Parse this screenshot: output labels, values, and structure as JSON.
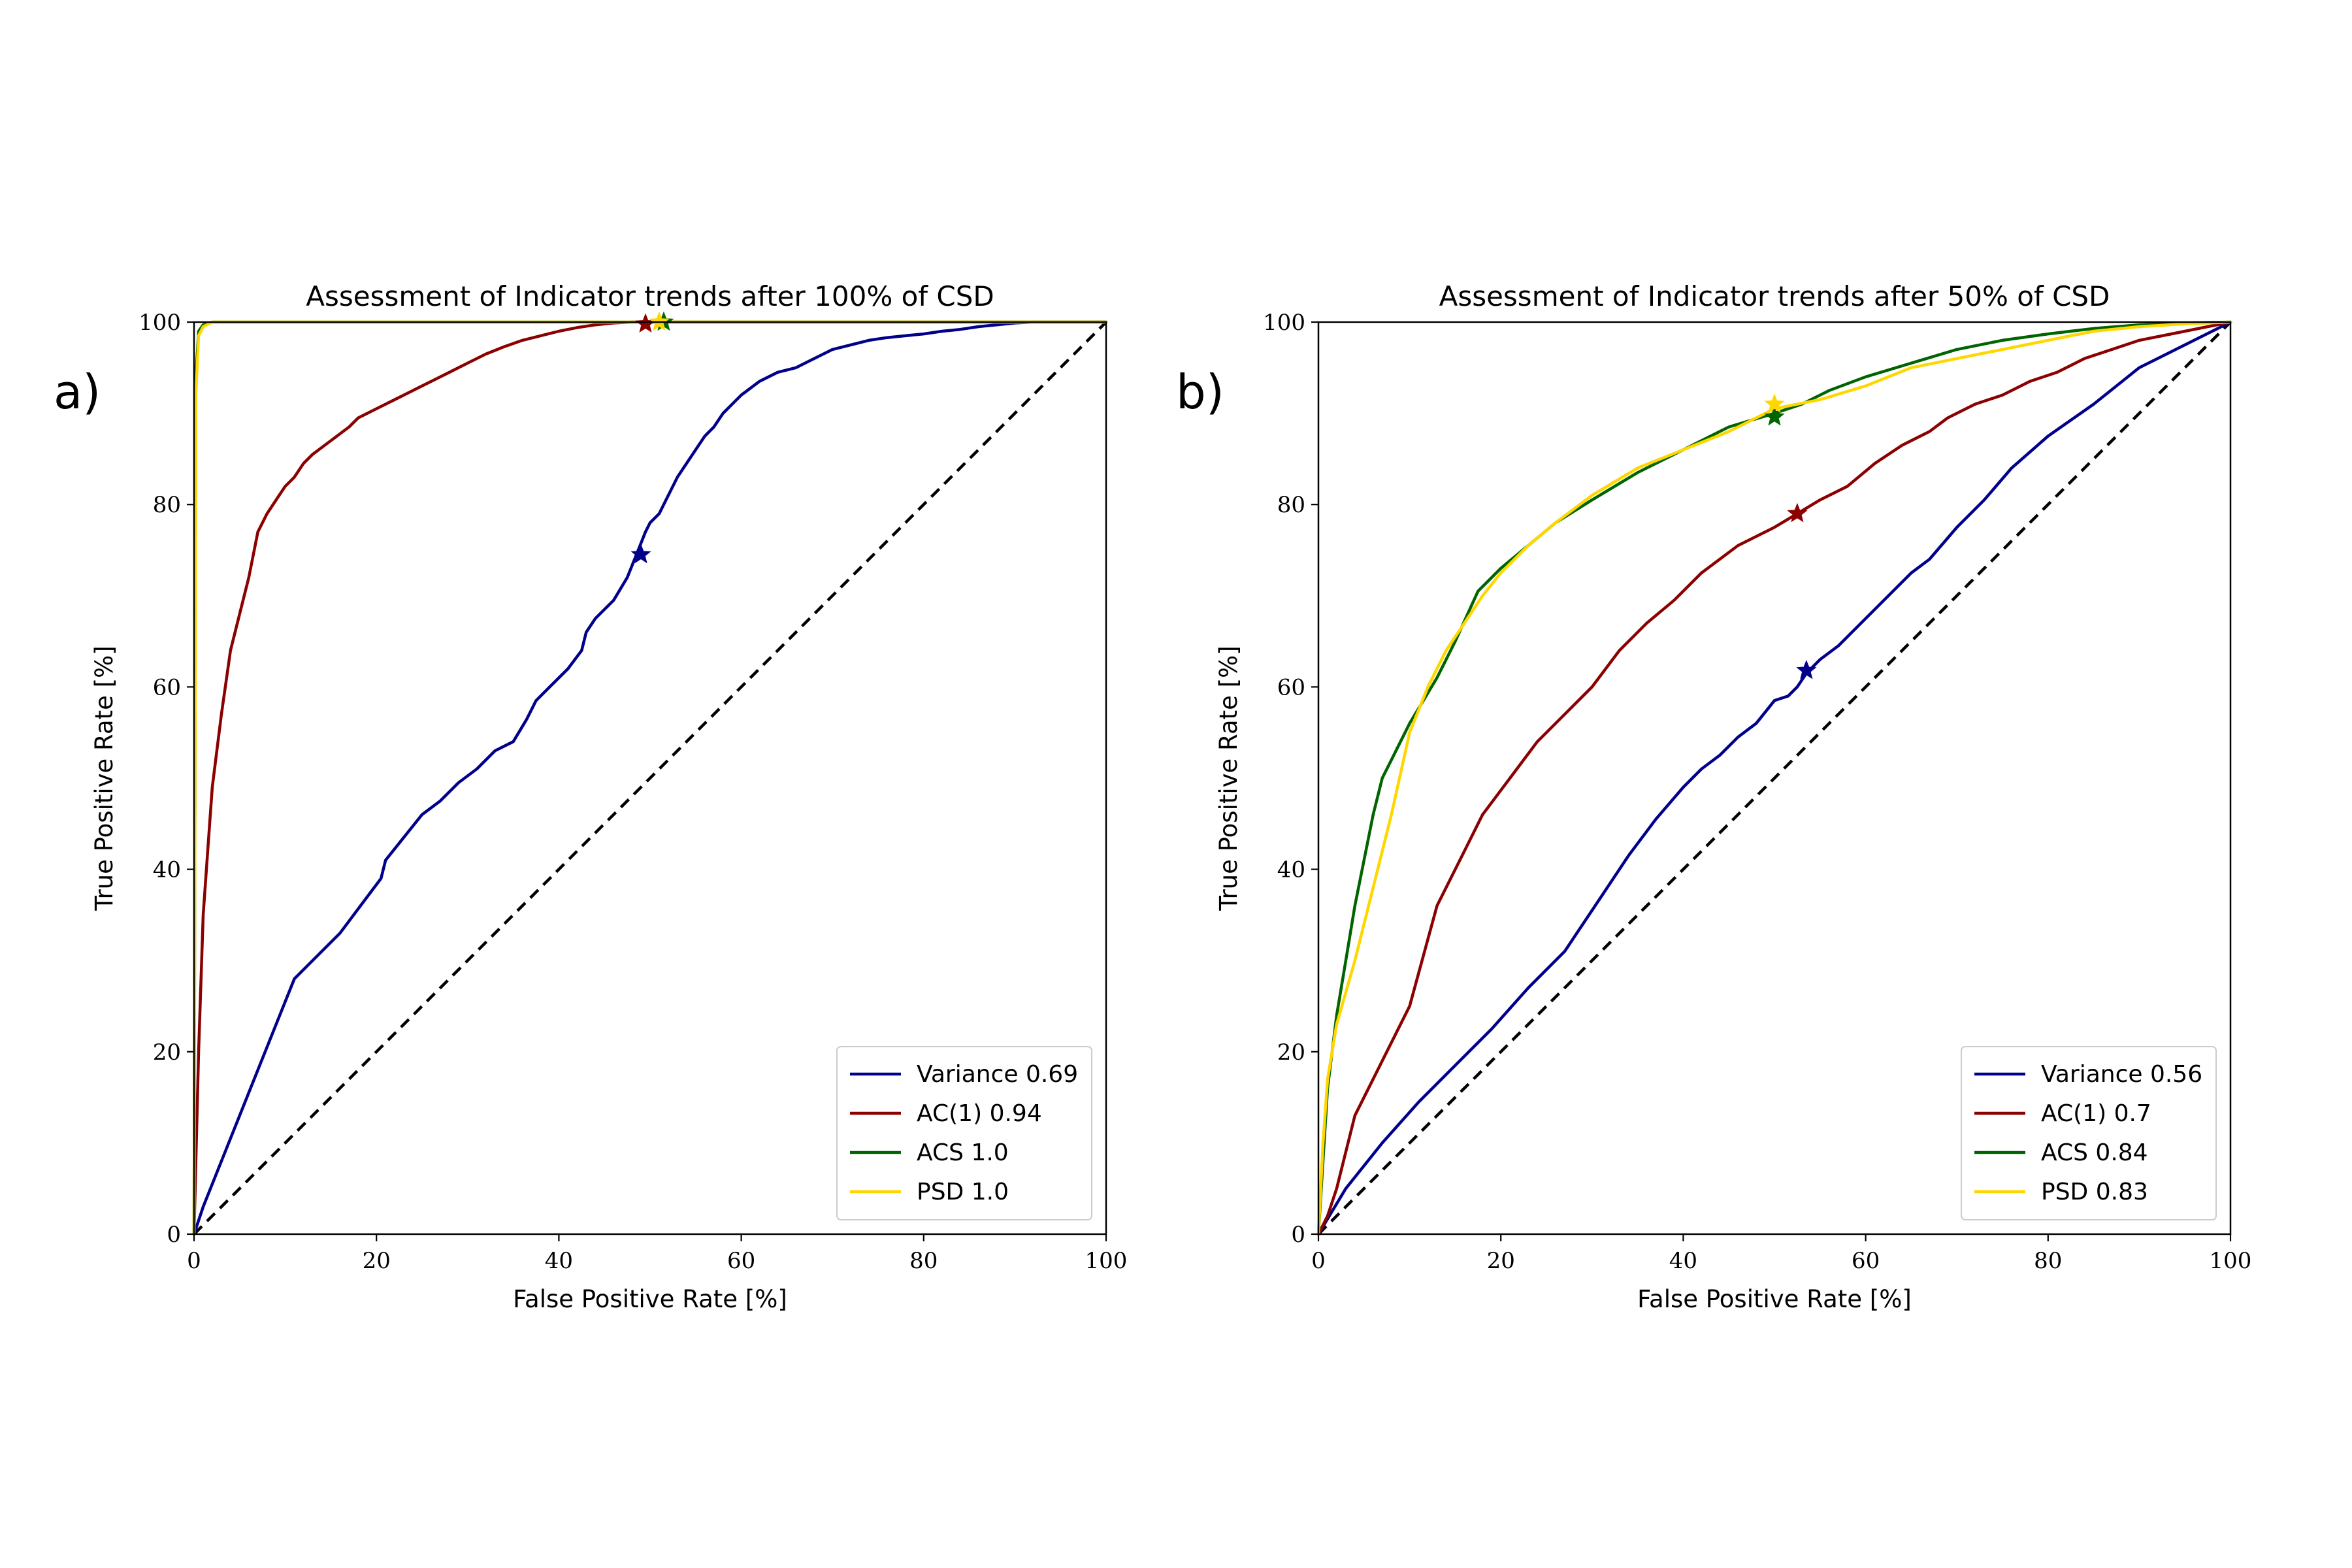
{
  "chart_data": [
    {
      "type": "line",
      "panel_label": "a)",
      "title": "Assessment of Indicator trends after 100% of CSD",
      "xlabel": "False Positive Rate [%]",
      "ylabel": "True Positive Rate [%]",
      "xlim": [
        0,
        100
      ],
      "ylim": [
        0,
        100
      ],
      "xticks": [
        "0",
        "20",
        "40",
        "60",
        "80",
        "100"
      ],
      "yticks": [
        "0",
        "20",
        "40",
        "60",
        "80",
        "100"
      ],
      "legend_position": "lower right",
      "diagonal": "dashed black line from (0,0) to (100,100)",
      "series": [
        {
          "name": "Variance 0.69",
          "color": "#00008b",
          "x": [
            0,
            1,
            3,
            5,
            7,
            9,
            11,
            13,
            16,
            19,
            20.5,
            21,
            23,
            25,
            27,
            29,
            31,
            33,
            35,
            36.5,
            37.5,
            39,
            41,
            42.5,
            43,
            44,
            46,
            47.5,
            48.5,
            49.5,
            50,
            51,
            52,
            53,
            54,
            55,
            56,
            57,
            58,
            60,
            62,
            64,
            66,
            67,
            69,
            70,
            72,
            74,
            76,
            78,
            80,
            82,
            84,
            86,
            88,
            90,
            92,
            95,
            97,
            100
          ],
          "y": [
            0,
            3,
            8,
            13,
            18,
            23,
            28,
            30,
            33,
            37,
            39,
            41,
            43.5,
            46,
            47.5,
            49.5,
            51,
            53,
            54,
            56.5,
            58.5,
            60,
            62,
            64,
            66,
            67.5,
            69.5,
            72,
            74.5,
            77,
            78,
            79,
            81,
            83,
            84.5,
            86,
            87.5,
            88.5,
            90,
            92,
            93.5,
            94.5,
            95,
            95.5,
            96.5,
            97,
            97.5,
            98,
            98.3,
            98.5,
            98.7,
            99,
            99.2,
            99.5,
            99.7,
            99.9,
            100,
            100,
            100,
            100
          ],
          "marker": {
            "x": 49,
            "y": 74.5
          }
        },
        {
          "name": "AC(1) 0.94",
          "color": "#8b0000",
          "x": [
            0,
            0.5,
            1,
            1.5,
            2,
            3,
            4,
            5,
            6,
            7,
            8,
            9,
            10,
            11,
            12,
            13,
            15,
            17,
            18,
            20,
            22,
            24,
            26,
            28,
            30,
            32,
            34,
            36,
            38,
            40,
            42,
            44,
            46,
            48,
            50,
            55,
            60,
            80,
            100
          ],
          "y": [
            0,
            20,
            35,
            42,
            49,
            57,
            64,
            68,
            72,
            77,
            79,
            80.5,
            82,
            83,
            84.5,
            85.5,
            87,
            88.5,
            89.5,
            90.5,
            91.5,
            92.5,
            93.5,
            94.5,
            95.5,
            96.5,
            97.3,
            98,
            98.5,
            99,
            99.4,
            99.7,
            99.9,
            100,
            100,
            100,
            100,
            100,
            100
          ],
          "marker": {
            "x": 49.5,
            "y": 99.8
          }
        },
        {
          "name": "ACS 1.0",
          "color": "#006400",
          "x": [
            0,
            0.2,
            0.5,
            1,
            2,
            5,
            10,
            30,
            60,
            100
          ],
          "y": [
            0,
            94,
            99,
            99.7,
            100,
            100,
            100,
            100,
            100,
            100
          ],
          "marker": {
            "x": 51.5,
            "y": 100
          }
        },
        {
          "name": "PSD 1.0",
          "color": "#ffd700",
          "x": [
            0,
            0.2,
            0.5,
            1,
            2,
            5,
            10,
            30,
            60,
            100
          ],
          "y": [
            0,
            92,
            98.5,
            99.5,
            100,
            100,
            100,
            100,
            100,
            100
          ],
          "marker": {
            "x": 51,
            "y": 100
          }
        }
      ]
    },
    {
      "type": "line",
      "panel_label": "b)",
      "title": "Assessment of Indicator trends after 50% of CSD",
      "xlabel": "False Positive Rate [%]",
      "ylabel": "True Positive Rate [%]",
      "xlim": [
        0,
        100
      ],
      "ylim": [
        0,
        100
      ],
      "xticks": [
        "0",
        "20",
        "40",
        "60",
        "80",
        "100"
      ],
      "yticks": [
        "0",
        "20",
        "40",
        "60",
        "80",
        "100"
      ],
      "legend_position": "lower right",
      "diagonal": "dashed black line from (0,0) to (100,100)",
      "series": [
        {
          "name": "Variance 0.56",
          "color": "#00008b",
          "x": [
            0,
            3,
            7,
            11,
            15,
            19,
            23,
            27,
            31,
            34,
            37,
            40,
            42,
            44,
            46,
            48,
            50,
            51.5,
            52.5,
            53.5,
            55,
            57,
            59,
            61,
            63,
            65,
            67,
            70,
            73,
            76,
            80,
            85,
            90,
            95,
            100
          ],
          "y": [
            0,
            5,
            10,
            14.5,
            18.5,
            22.5,
            27,
            31,
            37,
            41.5,
            45.5,
            49,
            51,
            52.5,
            54.5,
            56,
            58.5,
            59,
            60,
            61.5,
            63,
            64.5,
            66.5,
            68.5,
            70.5,
            72.5,
            74,
            77.5,
            80.5,
            84,
            87.5,
            91,
            95,
            97.5,
            100
          ],
          "marker": {
            "x": 53.5,
            "y": 61.8
          }
        },
        {
          "name": "AC(1) 0.7",
          "color": "#8b0000",
          "x": [
            0,
            1,
            2,
            4,
            7,
            10,
            13,
            16,
            18,
            21,
            24,
            27,
            30,
            33,
            36,
            39,
            42,
            46,
            50,
            52.5,
            55,
            58,
            61,
            64,
            67,
            69,
            72,
            75,
            78,
            81,
            84,
            87,
            90,
            95,
            100
          ],
          "y": [
            0,
            2,
            5,
            13,
            19,
            25,
            36,
            42,
            46,
            50,
            54,
            57,
            60,
            64,
            67,
            69.5,
            72.5,
            75.5,
            77.5,
            79,
            80.5,
            82,
            84.5,
            86.5,
            88,
            89.5,
            91,
            92,
            93.5,
            94.5,
            96,
            97,
            98,
            99,
            100
          ],
          "marker": {
            "x": 52.5,
            "y": 79
          }
        },
        {
          "name": "ACS 0.84",
          "color": "#006400",
          "x": [
            0,
            0.5,
            1,
            2,
            3,
            4,
            5,
            6,
            7,
            8,
            10,
            13,
            15,
            17.5,
            20,
            23,
            26,
            30,
            35,
            40,
            45,
            50,
            53,
            56,
            60,
            65,
            70,
            75,
            80,
            85,
            90,
            95,
            100
          ],
          "y": [
            0,
            8,
            16,
            24,
            30,
            36,
            41,
            46,
            50,
            52,
            56,
            61,
            65,
            70.5,
            73,
            75.5,
            78,
            80.5,
            83.5,
            86,
            88.5,
            90,
            91,
            92.5,
            94,
            95.5,
            97,
            98,
            98.7,
            99.3,
            99.7,
            99.9,
            100
          ],
          "marker": {
            "x": 50,
            "y": 89.6
          }
        },
        {
          "name": "PSD 0.83",
          "color": "#ffd700",
          "x": [
            0,
            0.5,
            1,
            2,
            4,
            6,
            8,
            10,
            12,
            14,
            16,
            18,
            20,
            23,
            26,
            30,
            35,
            40,
            45,
            50,
            55,
            60,
            65,
            70,
            75,
            80,
            85,
            90,
            95,
            100
          ],
          "y": [
            0,
            10,
            17,
            23,
            30,
            38,
            46,
            55,
            60,
            64,
            67,
            70,
            72.5,
            75.5,
            78,
            81,
            84,
            86,
            88,
            90.5,
            91.5,
            93,
            95,
            96,
            97,
            98,
            99,
            99.5,
            99.8,
            100
          ],
          "marker": {
            "x": 50,
            "y": 91
          }
        }
      ]
    }
  ]
}
